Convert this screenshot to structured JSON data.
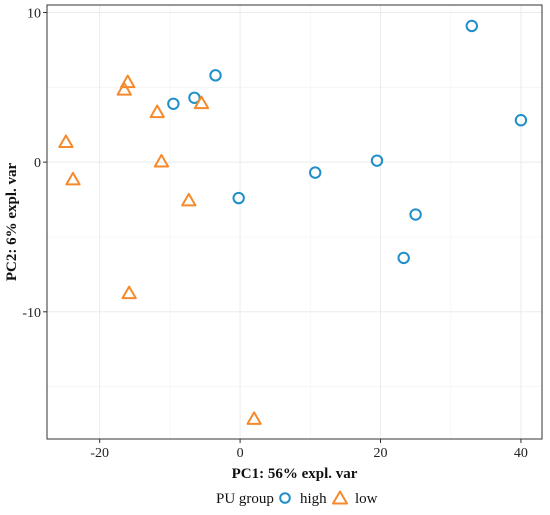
{
  "chart_data": {
    "type": "scatter",
    "xlabel": "PC1: 56% expl. var",
    "ylabel": "PC2: 6% expl. var",
    "xlim": [
      -27.5,
      43
    ],
    "ylim": [
      -18.5,
      10.5
    ],
    "x_ticks": [
      -20,
      0,
      20,
      40
    ],
    "x_tick_labels": [
      "-20",
      "0",
      "20",
      "40"
    ],
    "y_ticks": [
      -10,
      0,
      10
    ],
    "y_tick_labels": [
      "-10",
      "0",
      "10"
    ],
    "grid": true,
    "legend": {
      "title": "PU group",
      "placement": "bottom",
      "entries": [
        "high",
        "low"
      ]
    },
    "series": [
      {
        "name": "high",
        "marker": "circle",
        "color": "#1f8fc9",
        "points": [
          {
            "x": 33.0,
            "y": 9.1
          },
          {
            "x": 40.0,
            "y": 2.8
          },
          {
            "x": -3.5,
            "y": 5.8
          },
          {
            "x": -6.5,
            "y": 4.3
          },
          {
            "x": -9.5,
            "y": 3.9
          },
          {
            "x": 19.5,
            "y": 0.1
          },
          {
            "x": 10.7,
            "y": -0.7
          },
          {
            "x": -0.2,
            "y": -2.4
          },
          {
            "x": 25.0,
            "y": -3.5
          },
          {
            "x": 23.3,
            "y": -6.4
          }
        ]
      },
      {
        "name": "low",
        "marker": "triangle",
        "color": "#f5892b",
        "points": [
          {
            "x": -16.0,
            "y": 5.3
          },
          {
            "x": -16.5,
            "y": 4.8
          },
          {
            "x": -5.5,
            "y": 3.9
          },
          {
            "x": -11.8,
            "y": 3.3
          },
          {
            "x": -24.8,
            "y": 1.3
          },
          {
            "x": -11.2,
            "y": 0.0
          },
          {
            "x": -23.8,
            "y": -1.2
          },
          {
            "x": -7.3,
            "y": -2.6
          },
          {
            "x": -15.8,
            "y": -8.8
          },
          {
            "x": 2.0,
            "y": -17.2
          }
        ]
      }
    ]
  }
}
